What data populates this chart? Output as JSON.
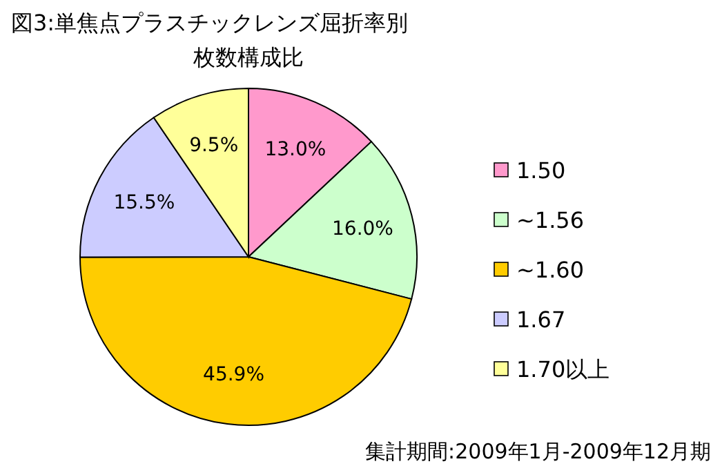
{
  "chart_data": {
    "type": "pie",
    "title": "図3:単焦点プラスチックレンズ屈折率別",
    "subtitle": "枚数構成比",
    "categories": [
      "1.50",
      "~1.56",
      "~1.60",
      "1.67",
      "1.70以上"
    ],
    "values": [
      13.0,
      16.0,
      45.9,
      15.5,
      9.5
    ],
    "value_labels": [
      "13.0%",
      "16.0%",
      "45.9%",
      "15.5%",
      "9.5%"
    ],
    "colors": [
      "#ff99cc",
      "#ccffcc",
      "#ffcc00",
      "#ccccff",
      "#ffff99"
    ],
    "legend": "right",
    "annotations": [
      "集計期間:2009年1月-2009年12月期"
    ]
  }
}
